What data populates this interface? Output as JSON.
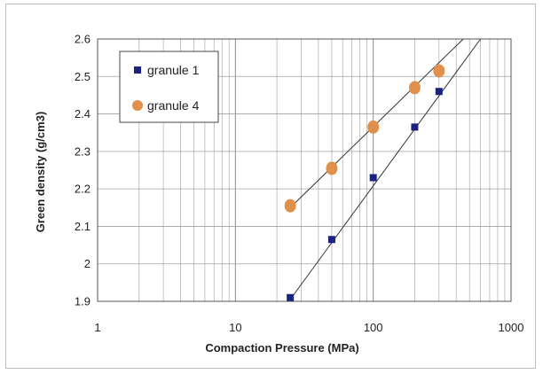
{
  "chart_data": {
    "type": "scatter",
    "title": "",
    "xlabel": "Compaction Pressure (MPa)",
    "ylabel": "Green density (g/cm3)",
    "xscale": "log",
    "xlim": [
      1,
      1000
    ],
    "ylim": [
      1.9,
      2.6
    ],
    "x_ticks": [
      "1",
      "10",
      "100",
      "1000"
    ],
    "y_ticks": [
      "1.9",
      "2",
      "2.1",
      "2.2",
      "2.3",
      "2.4",
      "2.5",
      "2.6"
    ],
    "grid": true,
    "legend_position": "top-left",
    "series": [
      {
        "name": "granule 1",
        "marker": "square",
        "color": "#1a237e",
        "x": [
          25,
          50,
          100,
          200,
          300
        ],
        "y": [
          1.91,
          2.065,
          2.23,
          2.365,
          2.46
        ],
        "trendline": {
          "x": [
            25,
            600
          ],
          "y": [
            1.905,
            2.6
          ]
        }
      },
      {
        "name": "granule 4",
        "marker": "circle",
        "color": "#e0904a",
        "x": [
          25,
          50,
          100,
          200,
          300
        ],
        "y": [
          2.155,
          2.255,
          2.365,
          2.47,
          2.515
        ],
        "trendline": {
          "x": [
            25,
            450
          ],
          "y": [
            2.15,
            2.6
          ]
        }
      }
    ]
  }
}
